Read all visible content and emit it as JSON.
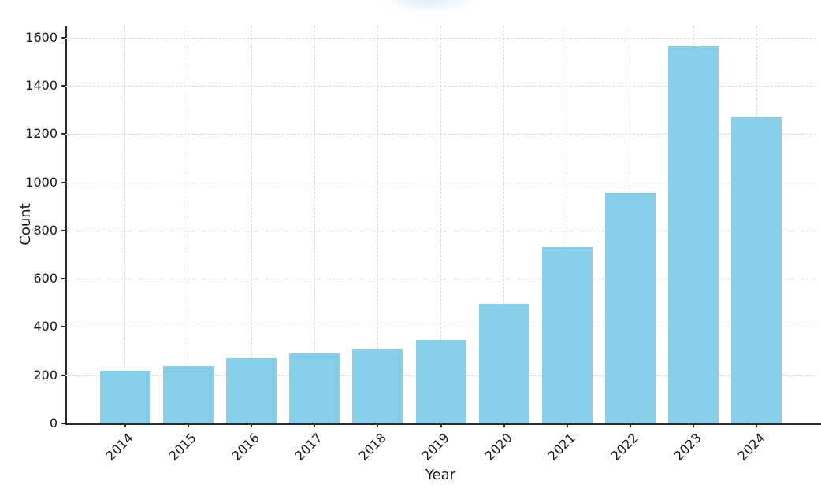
{
  "chart_data": {
    "type": "bar",
    "title": "",
    "title_obscured": true,
    "xlabel": "Year",
    "ylabel": "Count",
    "categories": [
      "2014",
      "2015",
      "2016",
      "2017",
      "2018",
      "2019",
      "2020",
      "2021",
      "2022",
      "2023",
      "2024"
    ],
    "values": [
      218,
      238,
      272,
      292,
      307,
      345,
      497,
      730,
      955,
      1562,
      1270
    ],
    "yticks": [
      0,
      200,
      400,
      600,
      800,
      1000,
      1200,
      1400,
      1600
    ],
    "ylim": [
      0,
      1648
    ],
    "grid": "dashed-both-axes",
    "legend": "none",
    "xtick_rotation_deg": 45,
    "bar_color": "#87CEEB",
    "axis_color": "#2b2b2b",
    "grid_color": "#d7d7d7",
    "tick_label_color": "#1a1a1a",
    "background_color": "#ffffff"
  }
}
